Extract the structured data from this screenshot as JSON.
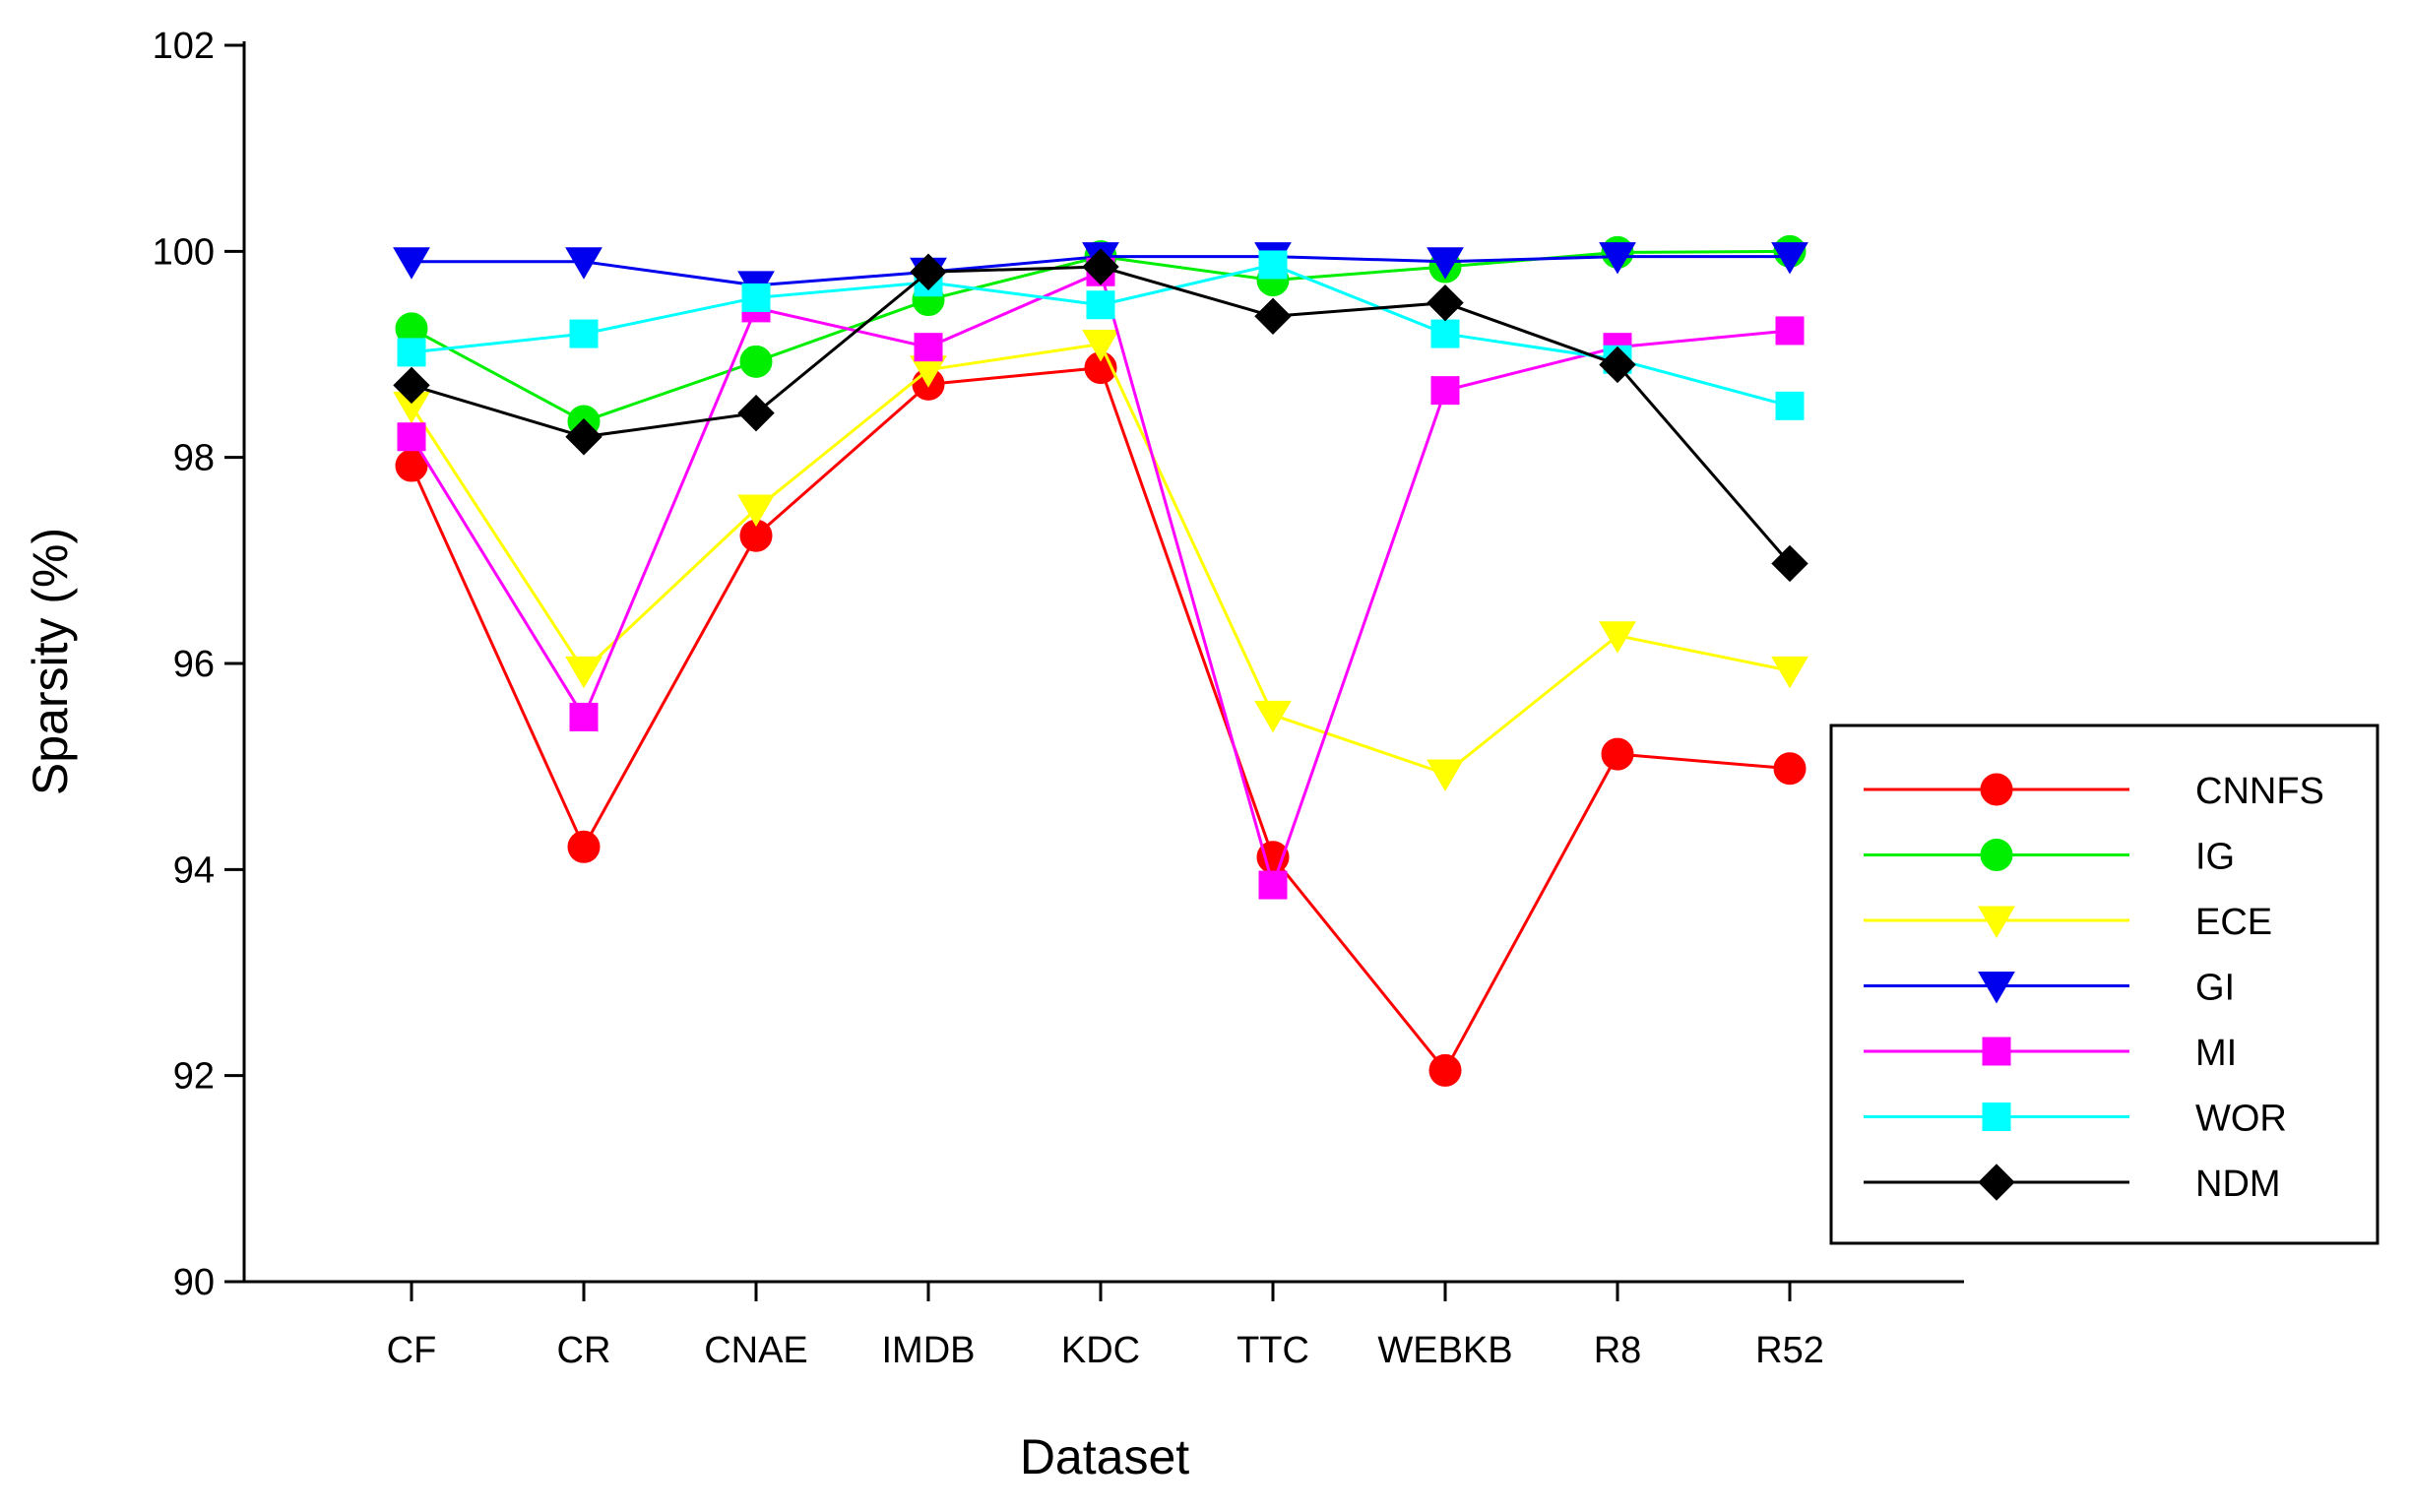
{
  "chart_data": {
    "type": "line",
    "title": "",
    "xlabel": "Dataset",
    "ylabel": "Sparsity (%)",
    "ylim": [
      90,
      102
    ],
    "yticks": [
      "90",
      "92",
      "94",
      "96",
      "98",
      "100",
      "102"
    ],
    "categories": [
      "CF",
      "CR",
      "CNAE",
      "IMDB",
      "KDC",
      "TTC",
      "WEBKB",
      "R8",
      "R52"
    ],
    "grid": false,
    "legend_position": "right",
    "series": [
      {
        "name": "CNNFS",
        "color": "#ff0000",
        "marker": "circle",
        "values": [
          97.92,
          94.22,
          97.24,
          98.71,
          98.87,
          94.12,
          92.05,
          95.12,
          94.98
        ]
      },
      {
        "name": "IG",
        "color": "#00ee00",
        "marker": "circle",
        "values": [
          99.25,
          98.35,
          98.93,
          99.53,
          99.95,
          99.72,
          99.85,
          99.99,
          100.0
        ]
      },
      {
        "name": "ECE",
        "color": "#ffff00",
        "marker": "triangle-down",
        "values": [
          98.5,
          95.93,
          97.5,
          98.85,
          99.1,
          95.5,
          94.93,
          96.27,
          95.93
        ]
      },
      {
        "name": "GI",
        "color": "#0000ee",
        "marker": "triangle-down",
        "values": [
          99.9,
          99.9,
          99.67,
          99.8,
          99.95,
          99.95,
          99.9,
          99.95,
          99.95
        ]
      },
      {
        "name": "MI",
        "color": "#ff00ff",
        "marker": "square",
        "values": [
          98.2,
          95.48,
          99.45,
          99.07,
          99.8,
          93.85,
          98.65,
          99.07,
          99.23
        ]
      },
      {
        "name": "WOR",
        "color": "#00ffff",
        "marker": "square",
        "values": [
          99.02,
          99.2,
          99.55,
          99.7,
          99.48,
          99.87,
          99.2,
          98.95,
          98.5
        ]
      },
      {
        "name": "NDM",
        "color": "#000000",
        "marker": "diamond",
        "values": [
          98.7,
          98.2,
          98.43,
          99.8,
          99.85,
          99.37,
          99.5,
          98.9,
          96.97
        ]
      }
    ]
  }
}
